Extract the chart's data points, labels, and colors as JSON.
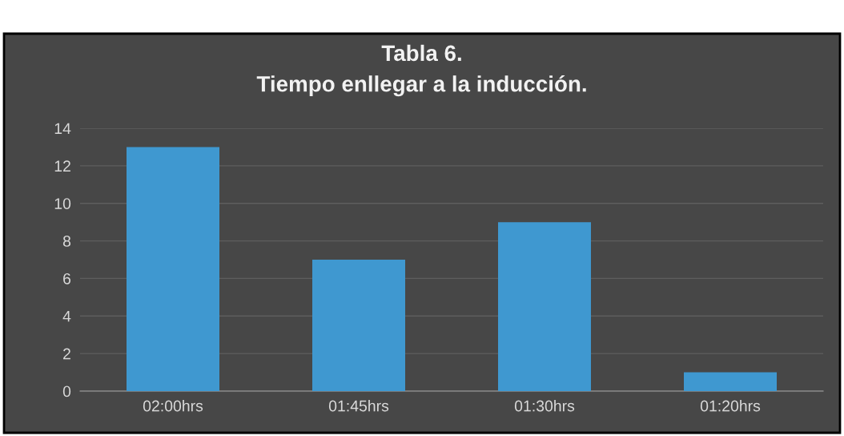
{
  "chart_data": {
    "type": "bar",
    "title": "Tabla 6.\nTiempo enllegar a la inducción.",
    "categories": [
      "02:00hrs",
      "01:45hrs",
      "01:30hrs",
      "01:20hrs"
    ],
    "values": [
      13,
      7,
      9,
      1
    ],
    "color": "#3f98d0",
    "ylim": [
      0,
      14
    ],
    "yticks": [
      0,
      2,
      4,
      6,
      8,
      10,
      12,
      14
    ],
    "grid": "y",
    "legend": false
  }
}
